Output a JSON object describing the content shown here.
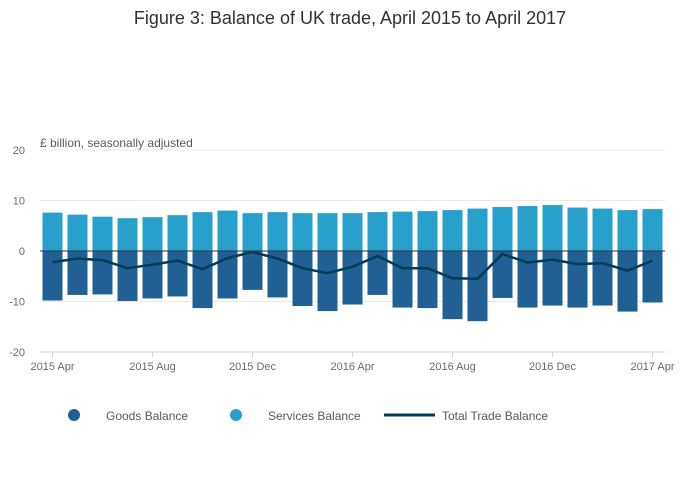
{
  "chart_data": {
    "type": "bar",
    "title": "Figure 3: Balance of UK trade, April 2015 to April 2017",
    "ylabel": "£ billion, seasonally adjusted",
    "ylim": [
      -20,
      20
    ],
    "yticks": [
      20,
      10,
      0,
      -10,
      -20
    ],
    "categories": [
      "2015 Apr",
      "2015 May",
      "2015 Jun",
      "2015 Jul",
      "2015 Aug",
      "2015 Sep",
      "2015 Oct",
      "2015 Nov",
      "2015 Dec",
      "2016 Jan",
      "2016 Feb",
      "2016 Mar",
      "2016 Apr",
      "2016 May",
      "2016 Jun",
      "2016 Jul",
      "2016 Aug",
      "2016 Sep",
      "2016 Oct",
      "2016 Nov",
      "2016 Dec",
      "2017 Jan",
      "2017 Feb",
      "2017 Mar",
      "2017 Apr"
    ],
    "xtick_labels": [
      {
        "index": 0,
        "label": "2015 Apr"
      },
      {
        "index": 4,
        "label": "2015 Aug"
      },
      {
        "index": 8,
        "label": "2015 Dec"
      },
      {
        "index": 12,
        "label": "2016 Apr"
      },
      {
        "index": 16,
        "label": "2016 Aug"
      },
      {
        "index": 20,
        "label": "2016 Dec"
      },
      {
        "index": 24,
        "label": "2017 Apr"
      }
    ],
    "series": [
      {
        "name": "Goods Balance",
        "type": "bar",
        "color": "#206095",
        "values": [
          -9.8,
          -8.7,
          -8.6,
          -9.9,
          -9.4,
          -9.0,
          -11.3,
          -9.4,
          -7.7,
          -9.2,
          -10.9,
          -11.9,
          -10.6,
          -8.7,
          -11.2,
          -11.3,
          -13.5,
          -13.9,
          -9.3,
          -11.2,
          -10.8,
          -11.2,
          -10.8,
          -12.0,
          -10.2
        ]
      },
      {
        "name": "Services Balance",
        "type": "bar",
        "color": "#27a0cc",
        "values": [
          7.6,
          7.2,
          6.8,
          6.5,
          6.7,
          7.1,
          7.7,
          8.0,
          7.5,
          7.7,
          7.5,
          7.5,
          7.5,
          7.7,
          7.8,
          7.9,
          8.1,
          8.4,
          8.7,
          8.9,
          9.1,
          8.6,
          8.4,
          8.1,
          8.3
        ]
      },
      {
        "name": "Total Trade Balance",
        "type": "line",
        "color": "#003c57",
        "values": [
          -2.2,
          -1.5,
          -1.8,
          -3.4,
          -2.7,
          -1.9,
          -3.6,
          -1.4,
          -0.2,
          -1.5,
          -3.4,
          -4.4,
          -3.1,
          -1.0,
          -3.4,
          -3.4,
          -5.4,
          -5.5,
          -0.6,
          -2.3,
          -1.7,
          -2.6,
          -2.4,
          -3.9,
          -1.9
        ]
      }
    ]
  }
}
